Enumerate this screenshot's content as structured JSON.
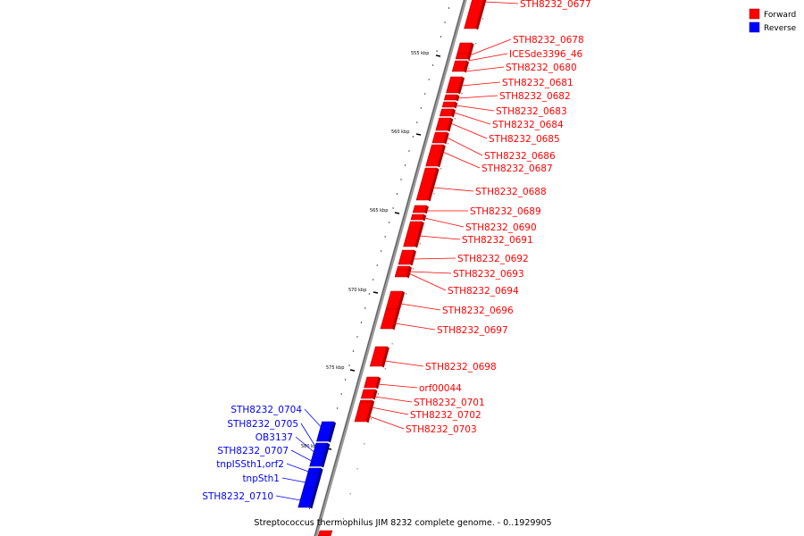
{
  "caption": "Streptococcus thermophilus JIM 8232 complete genome. - 0..1929905",
  "legend": [
    {
      "label": "Forward",
      "color": "#ff0000"
    },
    {
      "label": "Reverse",
      "color": "#0000ff"
    }
  ],
  "colors": {
    "forward": "#ff0000",
    "forward_dark": "#b00000",
    "reverse": "#0000ff",
    "reverse_dark": "#00008c",
    "backbone": "#888888"
  },
  "ticks": [
    "555 kbp",
    "560 kbp",
    "565 kbp",
    "570 kbp",
    "575 kbp",
    "580 kbp"
  ],
  "genes": [
    {
      "name": "STH8232_0677",
      "strand": "forward"
    },
    {
      "name": "STH8232_0678",
      "strand": "forward"
    },
    {
      "name": "ICESde3396_46",
      "strand": "forward"
    },
    {
      "name": "STH8232_0680",
      "strand": "forward"
    },
    {
      "name": "STH8232_0681",
      "strand": "forward"
    },
    {
      "name": "STH8232_0682",
      "strand": "forward"
    },
    {
      "name": "STH8232_0683",
      "strand": "forward"
    },
    {
      "name": "STH8232_0684",
      "strand": "forward"
    },
    {
      "name": "STH8232_0685",
      "strand": "forward"
    },
    {
      "name": "STH8232_0686",
      "strand": "forward"
    },
    {
      "name": "STH8232_0687",
      "strand": "forward"
    },
    {
      "name": "STH8232_0688",
      "strand": "forward"
    },
    {
      "name": "STH8232_0689",
      "strand": "forward"
    },
    {
      "name": "STH8232_0690",
      "strand": "forward"
    },
    {
      "name": "STH8232_0691",
      "strand": "forward"
    },
    {
      "name": "STH8232_0692",
      "strand": "forward"
    },
    {
      "name": "STH8232_0693",
      "strand": "forward"
    },
    {
      "name": "STH8232_0694",
      "strand": "forward"
    },
    {
      "name": "STH8232_0696",
      "strand": "forward"
    },
    {
      "name": "STH8232_0697",
      "strand": "forward"
    },
    {
      "name": "STH8232_0698",
      "strand": "forward"
    },
    {
      "name": "orf00044",
      "strand": "forward"
    },
    {
      "name": "STH8232_0701",
      "strand": "forward"
    },
    {
      "name": "STH8232_0702",
      "strand": "forward"
    },
    {
      "name": "STH8232_0703",
      "strand": "forward"
    },
    {
      "name": "STH8232_0704",
      "strand": "reverse"
    },
    {
      "name": "STH8232_0705",
      "strand": "reverse"
    },
    {
      "name": "OB3137",
      "strand": "reverse"
    },
    {
      "name": "STH8232_0707",
      "strand": "reverse"
    },
    {
      "name": "tnpISSth1,orf2",
      "strand": "reverse"
    },
    {
      "name": "tnpSth1",
      "strand": "reverse"
    },
    {
      "name": "STH8232_0710",
      "strand": "reverse"
    }
  ]
}
